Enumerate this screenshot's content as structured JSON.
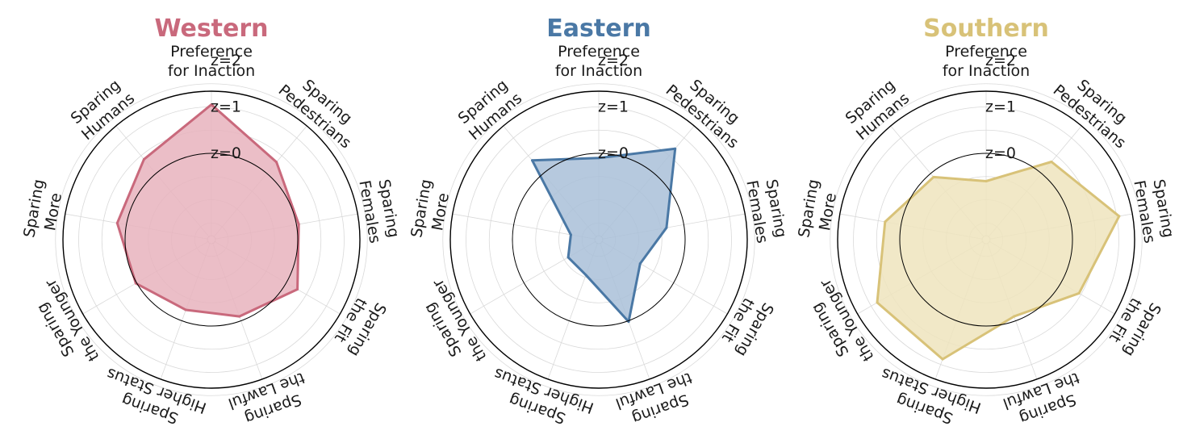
{
  "chart_data": [
    {
      "type": "radar",
      "title": "Western",
      "color": "#c9697c",
      "fill": "#e7b3bd",
      "axes": [
        "Preference\nfor Inaction",
        "Sparing\nPedestrians",
        "Sparing\nFemales",
        "Sparing\nthe Fit",
        "Sparing\nthe Lawful",
        "Sparing\nHigher Status",
        "Sparing\nthe Younger",
        "Sparing\nMore",
        "Sparing\nHumans"
      ],
      "rings": [
        "z=0",
        "z=1",
        "z=2"
      ],
      "values": [
        1.05,
        0.32,
        0.05,
        0.28,
        -0.1,
        -0.25,
        0.02,
        0.2,
        0.4
      ]
    },
    {
      "type": "radar",
      "title": "Eastern",
      "color": "#4a78a5",
      "fill": "#a9bfd8",
      "axes": [
        "Preference\nfor Inaction",
        "Sparing\nPedestrians",
        "Sparing\nFemales",
        "Sparing\nthe Fit",
        "Sparing\nthe Lawful",
        "Sparing\nHigher Status",
        "Sparing\nthe Younger",
        "Sparing\nMore",
        "Sparing\nHumans"
      ],
      "rings": [
        "z=0",
        "z=1",
        "z=2"
      ],
      "values": [
        -0.1,
        0.7,
        -0.38,
        -0.83,
        0.02,
        -1.05,
        -1.1,
        -1.25,
        0.37
      ]
    },
    {
      "type": "radar",
      "title": "Southern",
      "color": "#d8c278",
      "fill": "#eee4bd",
      "axes": [
        "Preference\nfor Inaction",
        "Sparing\nPedestrians",
        "Sparing\nFemales",
        "Sparing\nthe Fit",
        "Sparing\nthe Lawful",
        "Sparing\nHigher Status",
        "Sparing\nthe Younger",
        "Sparing\nMore",
        "Sparing\nHumans"
      ],
      "rings": [
        "z=0",
        "z=1",
        "z=2"
      ],
      "values": [
        -0.6,
        0.33,
        1.05,
        0.45,
        -0.1,
        0.88,
        0.85,
        0.35,
        -0.1
      ]
    }
  ]
}
